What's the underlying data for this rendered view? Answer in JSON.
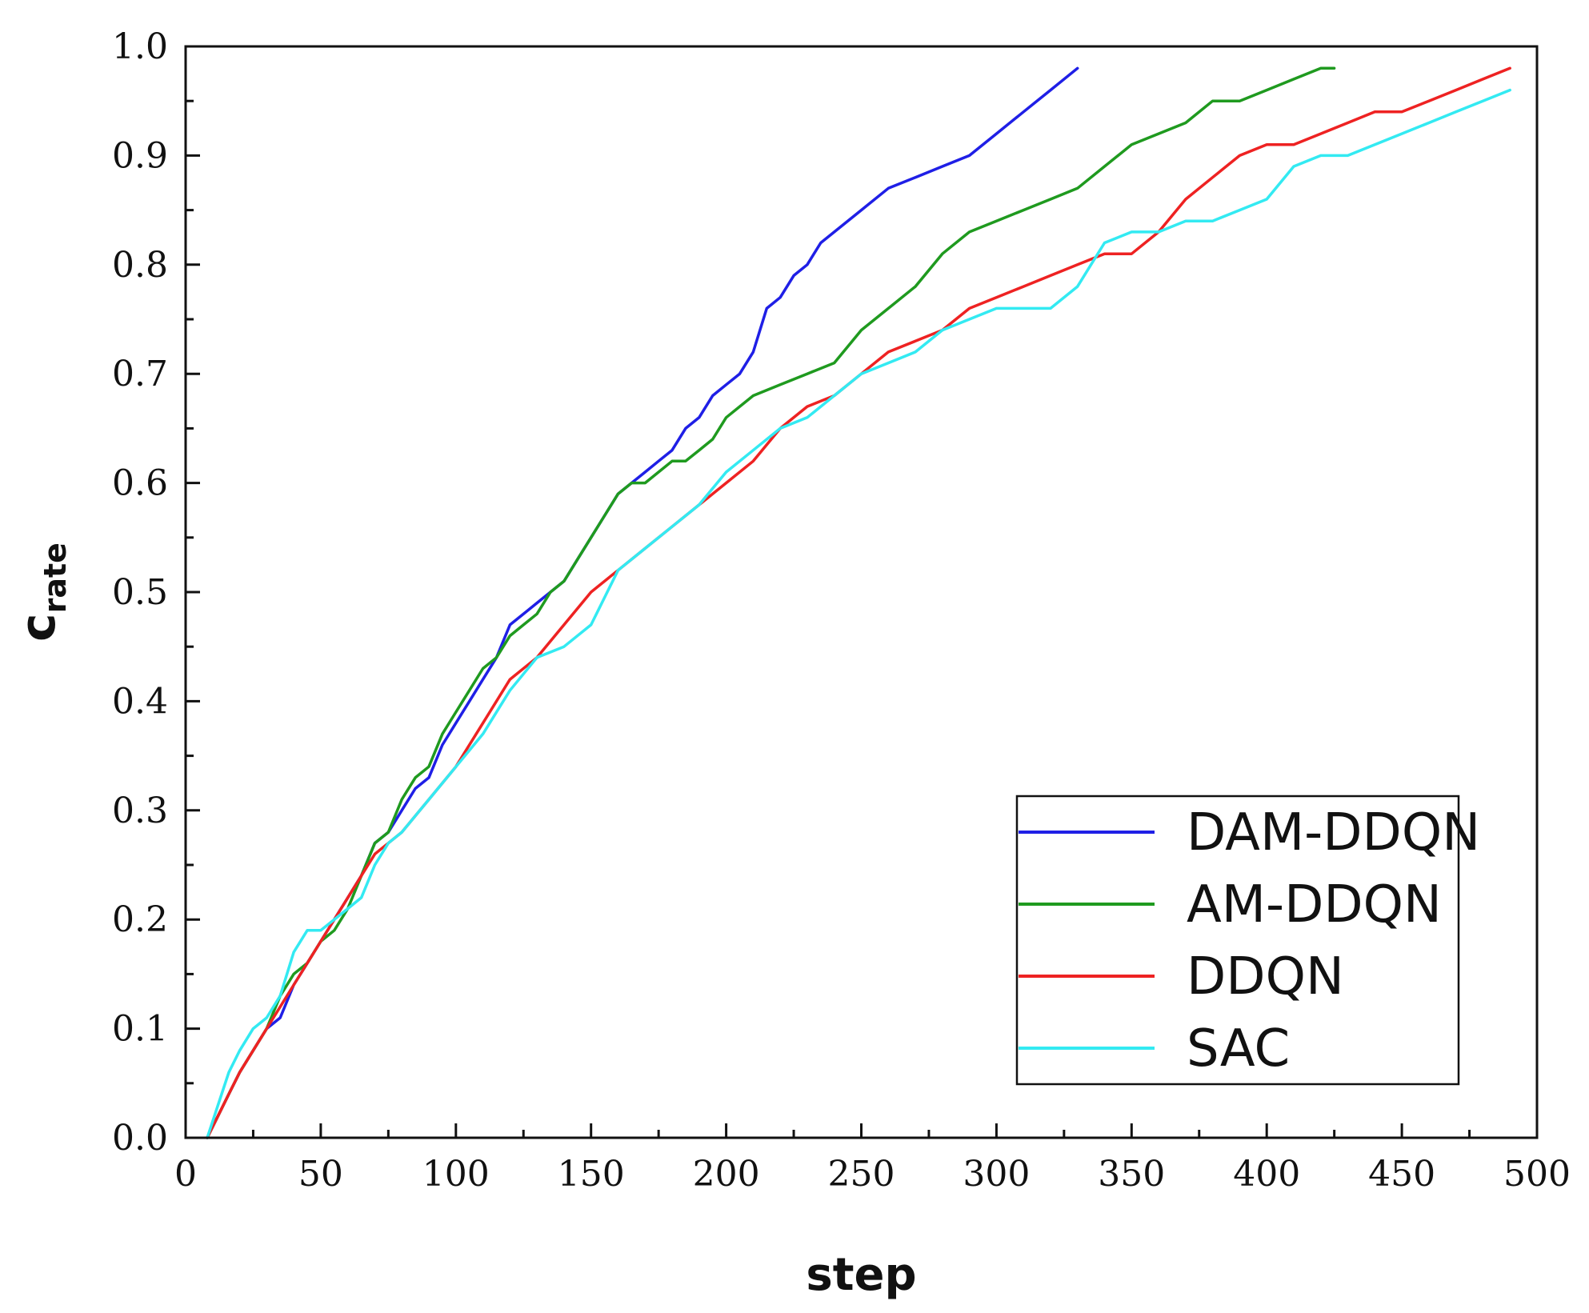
{
  "chart_data": {
    "type": "line",
    "xlabel": "step",
    "ylabel": {
      "main": "c",
      "sub": "rate"
    },
    "xlim": [
      0,
      500
    ],
    "ylim": [
      0.0,
      1.0
    ],
    "xticks": [
      "0",
      "50",
      "100",
      "150",
      "200",
      "250",
      "300",
      "350",
      "400",
      "450",
      "500"
    ],
    "yticks": [
      "0.0",
      "0.1",
      "0.2",
      "0.3",
      "0.4",
      "0.5",
      "0.6",
      "0.7",
      "0.8",
      "0.9",
      "1.0"
    ],
    "grid": false,
    "legend_position": "bottom-right",
    "series": [
      {
        "name": "DAM-DDQN",
        "color": "#1f1fe6",
        "x": [
          8,
          12,
          16,
          20,
          25,
          30,
          35,
          40,
          45,
          50,
          55,
          60,
          65,
          70,
          75,
          80,
          85,
          90,
          95,
          100,
          105,
          110,
          115,
          120,
          125,
          130,
          135,
          140,
          145,
          150,
          155,
          160,
          165,
          170,
          175,
          180,
          185,
          190,
          195,
          200,
          205,
          210,
          215,
          220,
          225,
          230,
          235,
          240,
          250,
          260,
          270,
          280,
          290,
          300,
          310,
          320,
          330
        ],
        "y": [
          0.0,
          0.02,
          0.04,
          0.06,
          0.08,
          0.1,
          0.11,
          0.14,
          0.16,
          0.18,
          0.2,
          0.22,
          0.24,
          0.27,
          0.28,
          0.3,
          0.32,
          0.33,
          0.36,
          0.38,
          0.4,
          0.42,
          0.44,
          0.47,
          0.48,
          0.49,
          0.5,
          0.51,
          0.53,
          0.55,
          0.57,
          0.59,
          0.6,
          0.61,
          0.62,
          0.63,
          0.65,
          0.66,
          0.68,
          0.69,
          0.7,
          0.72,
          0.76,
          0.77,
          0.79,
          0.8,
          0.82,
          0.83,
          0.85,
          0.87,
          0.88,
          0.89,
          0.9,
          0.92,
          0.94,
          0.96,
          0.98
        ]
      },
      {
        "name": "AM-DDQN",
        "color": "#1f9a1f",
        "x": [
          8,
          12,
          16,
          20,
          25,
          30,
          35,
          40,
          45,
          50,
          55,
          60,
          65,
          70,
          75,
          80,
          85,
          90,
          95,
          100,
          105,
          110,
          115,
          120,
          125,
          130,
          135,
          140,
          145,
          150,
          155,
          160,
          165,
          170,
          175,
          180,
          185,
          190,
          195,
          200,
          210,
          220,
          230,
          240,
          250,
          260,
          270,
          280,
          290,
          300,
          310,
          320,
          330,
          340,
          350,
          360,
          370,
          380,
          390,
          400,
          410,
          420,
          425
        ],
        "y": [
          0.0,
          0.02,
          0.04,
          0.06,
          0.08,
          0.1,
          0.13,
          0.15,
          0.16,
          0.18,
          0.19,
          0.21,
          0.24,
          0.27,
          0.28,
          0.31,
          0.33,
          0.34,
          0.37,
          0.39,
          0.41,
          0.43,
          0.44,
          0.46,
          0.47,
          0.48,
          0.5,
          0.51,
          0.53,
          0.55,
          0.57,
          0.59,
          0.6,
          0.6,
          0.61,
          0.62,
          0.62,
          0.63,
          0.64,
          0.66,
          0.68,
          0.69,
          0.7,
          0.71,
          0.74,
          0.76,
          0.78,
          0.81,
          0.83,
          0.84,
          0.85,
          0.86,
          0.87,
          0.89,
          0.91,
          0.92,
          0.93,
          0.95,
          0.95,
          0.96,
          0.97,
          0.98,
          0.98
        ]
      },
      {
        "name": "DDQN",
        "color": "#ee2222",
        "x": [
          8,
          12,
          16,
          20,
          25,
          30,
          35,
          40,
          45,
          50,
          55,
          60,
          65,
          70,
          75,
          80,
          90,
          100,
          110,
          120,
          130,
          140,
          150,
          160,
          170,
          180,
          190,
          200,
          210,
          220,
          230,
          240,
          250,
          260,
          270,
          280,
          290,
          300,
          310,
          320,
          330,
          340,
          350,
          360,
          370,
          380,
          390,
          400,
          410,
          420,
          430,
          440,
          450,
          460,
          470,
          480,
          490
        ],
        "y": [
          0.0,
          0.02,
          0.04,
          0.06,
          0.08,
          0.1,
          0.12,
          0.14,
          0.16,
          0.18,
          0.2,
          0.22,
          0.24,
          0.26,
          0.27,
          0.28,
          0.31,
          0.34,
          0.38,
          0.42,
          0.44,
          0.47,
          0.5,
          0.52,
          0.54,
          0.56,
          0.58,
          0.6,
          0.62,
          0.65,
          0.67,
          0.68,
          0.7,
          0.72,
          0.73,
          0.74,
          0.76,
          0.77,
          0.78,
          0.79,
          0.8,
          0.81,
          0.81,
          0.83,
          0.86,
          0.88,
          0.9,
          0.91,
          0.91,
          0.92,
          0.93,
          0.94,
          0.94,
          0.95,
          0.96,
          0.97,
          0.98
        ]
      },
      {
        "name": "SAC",
        "color": "#33eaf2",
        "x": [
          8,
          12,
          16,
          20,
          25,
          30,
          35,
          40,
          45,
          50,
          55,
          60,
          65,
          70,
          75,
          80,
          90,
          100,
          110,
          120,
          130,
          140,
          150,
          160,
          170,
          180,
          190,
          200,
          210,
          220,
          230,
          240,
          250,
          260,
          270,
          280,
          290,
          300,
          310,
          320,
          330,
          340,
          350,
          360,
          370,
          380,
          390,
          400,
          410,
          420,
          430,
          440,
          450,
          460,
          470,
          480,
          490
        ],
        "y": [
          0.0,
          0.03,
          0.06,
          0.08,
          0.1,
          0.11,
          0.13,
          0.17,
          0.19,
          0.19,
          0.2,
          0.21,
          0.22,
          0.25,
          0.27,
          0.28,
          0.31,
          0.34,
          0.37,
          0.41,
          0.44,
          0.45,
          0.47,
          0.52,
          0.54,
          0.56,
          0.58,
          0.61,
          0.63,
          0.65,
          0.66,
          0.68,
          0.7,
          0.71,
          0.72,
          0.74,
          0.75,
          0.76,
          0.76,
          0.76,
          0.78,
          0.82,
          0.83,
          0.83,
          0.84,
          0.84,
          0.85,
          0.86,
          0.89,
          0.9,
          0.9,
          0.91,
          0.92,
          0.93,
          0.94,
          0.95,
          0.96
        ]
      }
    ]
  }
}
